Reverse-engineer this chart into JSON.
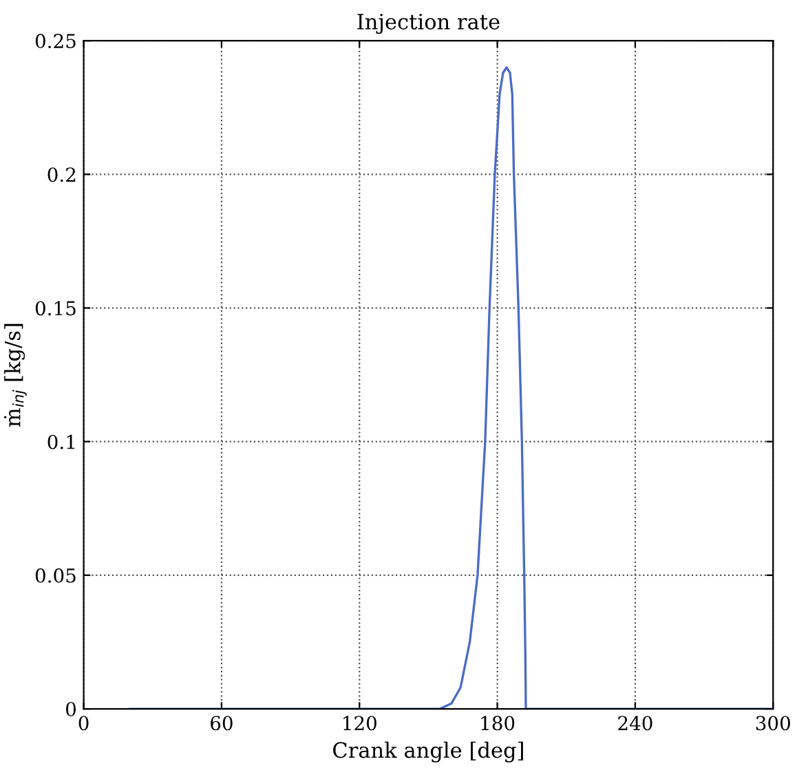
{
  "chart_data": {
    "type": "line",
    "title": "Injection rate",
    "xlabel": "Crank angle [deg]",
    "ylabel": "ṁ$_{inj}$ [kg/s]",
    "x": [
      20,
      155,
      160,
      164,
      168,
      171.4,
      174.7,
      176.6,
      178.9,
      181,
      182.5,
      184,
      185.5,
      186.5,
      187.2,
      189.2,
      190.7,
      191.7,
      192.2,
      192.4,
      300
    ],
    "series": [
      {
        "color": "#4a6cc8",
        "values": [
          0,
          0,
          0.002,
          0.008,
          0.025,
          0.05,
          0.1,
          0.15,
          0.2,
          0.23,
          0.238,
          0.24,
          0.238,
          0.23,
          0.2,
          0.15,
          0.1,
          0.05,
          0.02,
          0,
          0
        ]
      }
    ],
    "xlim": [
      0,
      300
    ],
    "xticks": [
      0,
      60,
      120,
      180,
      240,
      300
    ],
    "ylim": [
      0,
      0.25
    ],
    "yticks": [
      0,
      0.05,
      0.1,
      0.15,
      0.2,
      0.25
    ],
    "grid": true,
    "line_style": "solid",
    "marker": "none",
    "legend": false
  }
}
